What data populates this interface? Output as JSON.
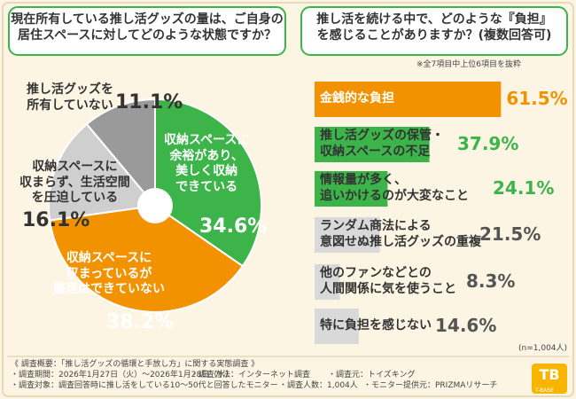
{
  "chart_data": [
    {
      "type": "pie",
      "title": "現在所有している推し活グッズの量は、ご自身の\n居住スペースに対してどのような状態ですか？",
      "categories": [
        "収納スペースに\n余裕があり、\n美しく収納\nできている",
        "収納スペースに\n収まっているが\n整理はできていない",
        "収納スペースに\n収まらず、生活空間\nを圧迫している",
        "推し活グッズを\n所有していない"
      ],
      "values": [
        34.6,
        38.2,
        16.1,
        11.1
      ],
      "value_labels": [
        "34.6%",
        "38.2%",
        "16.1%",
        "11.1%"
      ],
      "colors": [
        "#3cb44a",
        "#f39200",
        "#cfcfcf",
        "#9a9a9a"
      ]
    },
    {
      "type": "bar",
      "title": "推し活を続ける中で、どのような『負担』\nを感じることがありますか？(複数回答可)",
      "note": "※全7項目中上位6項目を抜粋",
      "sample": "(n=1,004人)",
      "categories": [
        "金銭的な負担",
        "推し活グッズの保管・\n収納スペースの不足",
        "情報量が多く、\n追いかけるのが大変なこと",
        "ランダム商法による\n意図せぬ推し活グッズの重複",
        "他のファンなどとの\n人間関係に気を使うこと",
        "特に負担を感じない"
      ],
      "values": [
        61.5,
        37.9,
        24.1,
        21.5,
        8.3,
        14.6
      ],
      "value_labels": [
        "61.5%",
        "37.9%",
        "24.1%",
        "21.5%",
        "8.3%",
        "14.6%"
      ],
      "colors": [
        "#f39200",
        "#3cb44a",
        "#3cb44a",
        "#d9d9d9",
        "#d9d9d9",
        "#d9d9d9"
      ]
    }
  ],
  "footer": {
    "heading": "《 調査概要：「推し活グッズの循環と手放し方」に関する実態調査 》",
    "items": [
      "・調査期間：2026年1月27日（火）～2026年1月28日（水）",
      "・調査方法：インターネット調査",
      "・調査元：トイズキング",
      "・調査対象：調査回答時に推し活をしている10～50代と回答したモニター",
      "・調査人数：1,004人",
      "・モニター提供元：PRIZMAリサーチ"
    ]
  },
  "logo": "T-BASE"
}
